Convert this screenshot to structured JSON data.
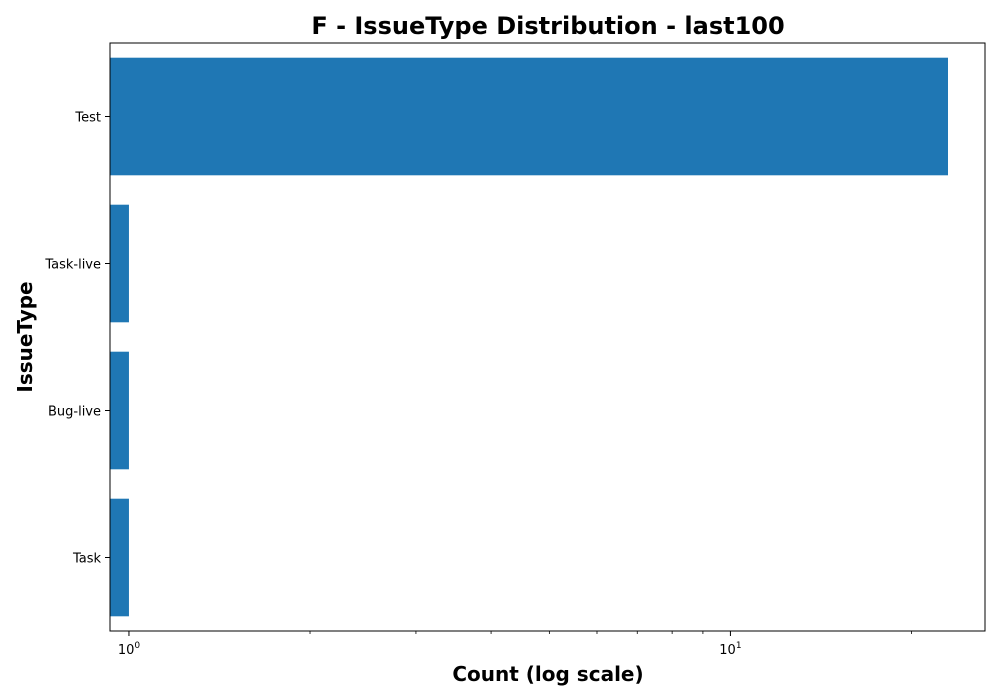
{
  "chart_data": {
    "type": "bar",
    "orientation": "horizontal",
    "title": "F - IssueType Distribution - last100",
    "xlabel": "Count (log scale)",
    "ylabel": "IssueType",
    "x_scale": "log",
    "xlim": [
      0.93,
      26.5
    ],
    "x_major_ticks": [
      {
        "value": 1,
        "base": "10",
        "exp": "0"
      },
      {
        "value": 10,
        "base": "10",
        "exp": "1"
      }
    ],
    "x_minor_ticks": [
      2,
      3,
      4,
      5,
      6,
      7,
      8,
      9,
      20
    ],
    "categories": [
      "Test",
      "Task-live",
      "Bug-live",
      "Task"
    ],
    "values": [
      23,
      1,
      1,
      1
    ],
    "bar_color": "#1f77b4",
    "grid": false,
    "legend": "none"
  }
}
